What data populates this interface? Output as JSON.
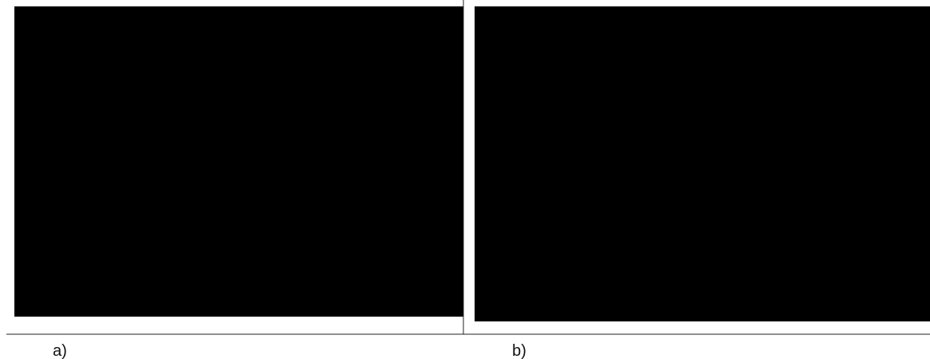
{
  "figure": {
    "panels": [
      {
        "label": "a)"
      },
      {
        "label": "b)"
      }
    ]
  }
}
